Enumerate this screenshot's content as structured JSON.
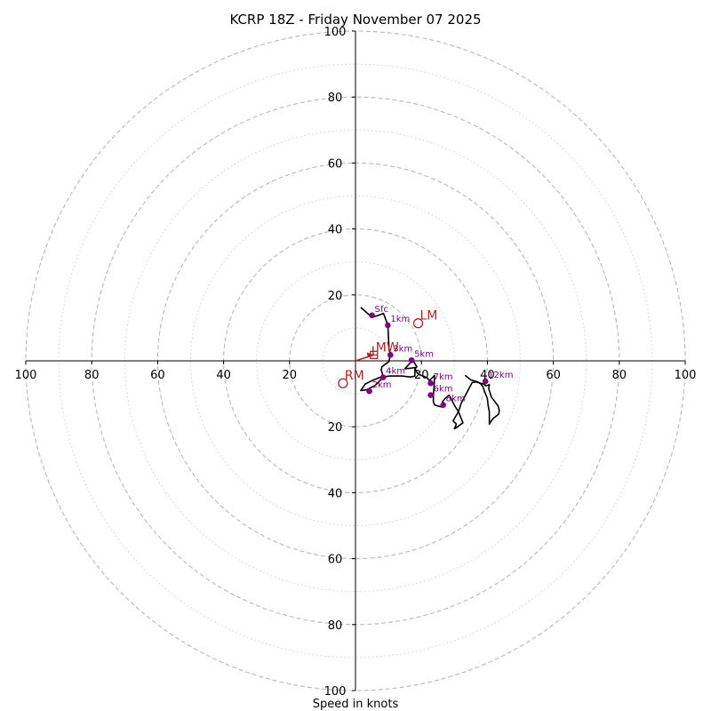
{
  "chart_data": {
    "type": "hodograph",
    "title": "KCRP 18Z - Friday November 07 2025",
    "xlabel": "Speed in knots",
    "ylabel": "",
    "units": "knots",
    "range": [
      -100,
      100
    ],
    "rings_dashed": [
      20,
      40,
      60,
      80,
      100
    ],
    "rings_dotted": [
      10,
      30,
      50,
      70,
      90
    ],
    "axis_ticks_right": [
      "20",
      "40",
      "60",
      "80",
      "100"
    ],
    "axis_ticks_left": [
      "100",
      "80",
      "60",
      "40",
      "20"
    ],
    "axis_ticks_up": [
      "20",
      "40",
      "60",
      "80",
      "100"
    ],
    "axis_ticks_down": [
      "20",
      "40",
      "60",
      "80",
      "100"
    ],
    "line_color": "#000000",
    "marker_color": "#800080",
    "motion_color": "#b22222",
    "ring_color": "#b8b8b8",
    "trace": [
      [
        1.6,
        16.2
      ],
      [
        5.0,
        13.2
      ],
      [
        7.0,
        13.8
      ],
      [
        8.5,
        14.4
      ],
      [
        9.8,
        10.8
      ],
      [
        10.0,
        7.0
      ],
      [
        10.2,
        3.5
      ],
      [
        10.5,
        1.8
      ],
      [
        10.2,
        -0.2
      ],
      [
        8.0,
        -1.8
      ],
      [
        7.8,
        -2.8
      ],
      [
        8.0,
        -3.4
      ],
      [
        8.4,
        -5.0
      ],
      [
        6.0,
        -7.4
      ],
      [
        3.4,
        -8.8
      ],
      [
        1.6,
        -9.0
      ],
      [
        3.0,
        -7.0
      ],
      [
        5.0,
        -6.0
      ],
      [
        7.4,
        -5.0
      ],
      [
        10.4,
        -4.6
      ],
      [
        14.0,
        -4.6
      ],
      [
        16.8,
        -4.9
      ],
      [
        18.0,
        -4.6
      ],
      [
        18.0,
        -2.0
      ],
      [
        17.0,
        -2.2
      ],
      [
        15.0,
        -2.4
      ],
      [
        16.6,
        -0.6
      ],
      [
        17.6,
        -0.2
      ],
      [
        18.6,
        -1.8
      ],
      [
        18.0,
        -2.6
      ],
      [
        19.0,
        -4.0
      ],
      [
        20.4,
        -4.6
      ],
      [
        21.0,
        -4.8
      ],
      [
        21.8,
        -5.2
      ],
      [
        22.4,
        -6.0
      ],
      [
        24.0,
        -4.4
      ],
      [
        23.8,
        -8.0
      ],
      [
        23.6,
        -10.6
      ],
      [
        23.6,
        -12.4
      ],
      [
        24.0,
        -13.4
      ],
      [
        26.0,
        -14.0
      ],
      [
        27.0,
        -13.2
      ],
      [
        26.4,
        -12.4
      ],
      [
        27.2,
        -11.4
      ],
      [
        28.4,
        -10.4
      ],
      [
        30.2,
        -13.8
      ],
      [
        31.2,
        -15.4
      ],
      [
        32.6,
        -18.8
      ],
      [
        30.4,
        -20.4
      ],
      [
        30.0,
        -20.6
      ],
      [
        30.6,
        -19.2
      ],
      [
        29.6,
        -18.2
      ],
      [
        31.0,
        -15.8
      ],
      [
        31.6,
        -14.4
      ],
      [
        32.0,
        -13.0
      ],
      [
        34.2,
        -8.8
      ],
      [
        35.4,
        -6.6
      ],
      [
        36.4,
        -6.4
      ],
      [
        38.8,
        -7.0
      ],
      [
        39.6,
        -7.6
      ],
      [
        40.6,
        -7.2
      ],
      [
        40.4,
        -8.4
      ],
      [
        41.2,
        -11.0
      ],
      [
        43.2,
        -13.6
      ],
      [
        43.6,
        -15.0
      ],
      [
        43.4,
        -16.2
      ],
      [
        41.8,
        -17.4
      ],
      [
        41.2,
        -18.2
      ],
      [
        40.6,
        -19.2
      ],
      [
        40.6,
        -15.6
      ],
      [
        40.2,
        -13.2
      ],
      [
        40.0,
        -11.4
      ],
      [
        39.2,
        -9.4
      ],
      [
        38.6,
        -7.8
      ],
      [
        38.0,
        -7.0
      ],
      [
        37.0,
        -6.4
      ],
      [
        35.0,
        -5.8
      ],
      [
        33.2,
        -4.4
      ]
    ],
    "markers": [
      {
        "label": "Sfc",
        "u": 5.0,
        "v": 13.8
      },
      {
        "label": "1km",
        "u": 9.8,
        "v": 10.8
      },
      {
        "label": "2km",
        "u": 4.2,
        "v": -9.2
      },
      {
        "label": "3km",
        "u": 10.6,
        "v": 1.8
      },
      {
        "label": "4km",
        "u": 8.4,
        "v": -5.0
      },
      {
        "label": "5km",
        "u": 17.0,
        "v": 0.2
      },
      {
        "label": "6km",
        "u": 22.8,
        "v": -10.4
      },
      {
        "label": "7km",
        "u": 22.8,
        "v": -6.8
      },
      {
        "label": "8km",
        "u": 26.6,
        "v": -13.4
      },
      {
        "label": "12km",
        "u": 39.4,
        "v": -6.2
      }
    ],
    "storm_motion": [
      {
        "label": "LM",
        "u": 19.0,
        "v": 11.4
      },
      {
        "label": "RM",
        "u": -3.8,
        "v": -6.8
      },
      {
        "label": "MW",
        "u": 5.6,
        "v": 1.8
      }
    ],
    "shear_vector": {
      "from": [
        0,
        0
      ],
      "to": [
        5.6,
        1.8
      ]
    },
    "extra_glyph": {
      "label": "L",
      "u": 4.8,
      "v": 1.6
    }
  }
}
